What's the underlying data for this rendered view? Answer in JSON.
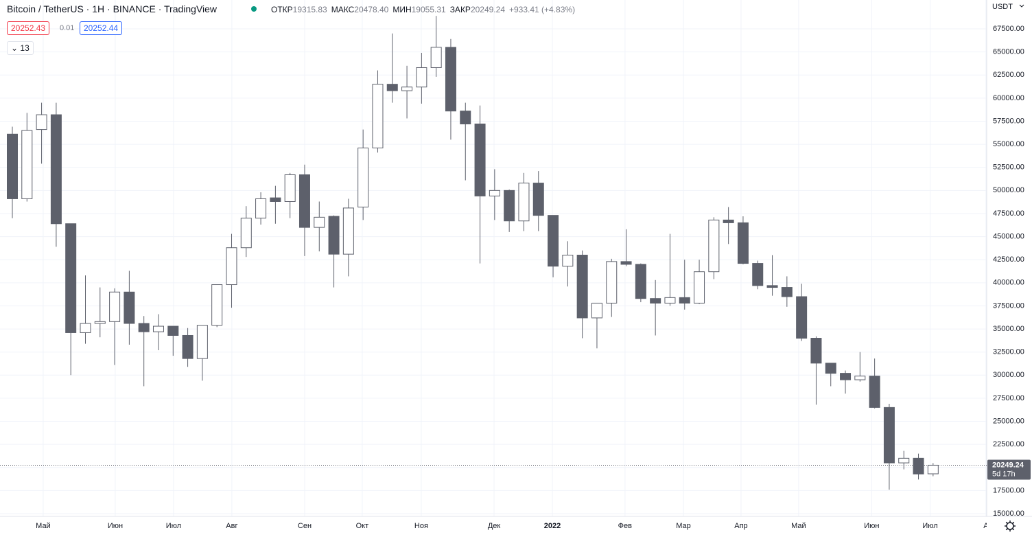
{
  "chart_data": {
    "type": "candlestick",
    "title": "Bitcoin / TetherUS · 1H · BINANCE · TradingView",
    "ohlc_legend": {
      "items": [
        {
          "label": "ОТКР",
          "value_label": "19315.83"
        },
        {
          "label": "МАКС",
          "value_label": "20478.40"
        },
        {
          "label": "МИН",
          "value_label": "19055.31"
        },
        {
          "label": "ЗАКР",
          "value_label": "20249.24"
        }
      ],
      "change": "+933.41 (+4.83%)"
    },
    "quote": {
      "bid": "20252.43",
      "spread": "0.01",
      "ask": "20252.44",
      "indicators": "13"
    },
    "currency": "USDT",
    "price_tag": {
      "value": 20249.24,
      "label": "20249.24",
      "countdown": "5d 17h"
    },
    "colors": {
      "down": "#5d606b",
      "up": "#ffffff",
      "border": "#5d606b"
    },
    "x": [
      0,
      1,
      2,
      3,
      4,
      5,
      6,
      7,
      8,
      9,
      10,
      11,
      12,
      13,
      14,
      15,
      16,
      17,
      18,
      19,
      20,
      21,
      22,
      23,
      24,
      25,
      26,
      27,
      28,
      29,
      30,
      31,
      32,
      33,
      34,
      35,
      36,
      37,
      38,
      39,
      40,
      41,
      42,
      43,
      44,
      45,
      46,
      47,
      48,
      49,
      50,
      51,
      52,
      53,
      54,
      55,
      56,
      57,
      58,
      59,
      60,
      61,
      62,
      63
    ],
    "candles": {
      "open": [
        56100,
        49100,
        56600,
        58200,
        46400,
        34600,
        35600,
        35800,
        39000,
        35600,
        34700,
        35300,
        34300,
        31800,
        35400,
        39800,
        43800,
        47000,
        49200,
        48800,
        51700,
        46000,
        47200,
        43100,
        48200,
        54600,
        61500,
        60800,
        61200,
        63300,
        65500,
        58600,
        57200,
        49400,
        50000,
        46700,
        50800,
        47300,
        41800,
        43000,
        36200,
        37800,
        42300,
        42000,
        38300,
        37800,
        38400,
        37800,
        41200,
        46800,
        46500,
        42100,
        39700,
        39500,
        38500,
        34000,
        31300,
        30200,
        29500,
        29900,
        26500,
        20500,
        21000,
        19315.83
      ],
      "high": [
        56900,
        58400,
        59500,
        59500,
        46400,
        40800,
        39500,
        39400,
        41300,
        36400,
        36600,
        35300,
        35100,
        35400,
        39800,
        45300,
        48300,
        49800,
        50500,
        51900,
        52800,
        48800,
        47300,
        49100,
        56600,
        63000,
        67000,
        63500,
        64900,
        68900,
        66400,
        59500,
        59200,
        52300,
        50100,
        51900,
        52100,
        47300,
        44500,
        43500,
        37800,
        42600,
        45800,
        42100,
        40300,
        45300,
        42500,
        42500,
        47100,
        48200,
        47200,
        42400,
        43000,
        40700,
        39900,
        34200,
        31300,
        30500,
        32500,
        31800,
        26900,
        21800,
        21500,
        20478.4
      ],
      "low": [
        47000,
        48800,
        52900,
        43900,
        30000,
        33400,
        34100,
        31100,
        33300,
        28800,
        32700,
        32100,
        30900,
        29400,
        35200,
        37300,
        42800,
        46300,
        46400,
        47000,
        42900,
        43400,
        39500,
        40700,
        46800,
        54100,
        59500,
        57800,
        59400,
        62300,
        55500,
        51100,
        42100,
        46800,
        45500,
        45600,
        45600,
        40600,
        39600,
        34000,
        32900,
        36300,
        41800,
        37900,
        34300,
        37500,
        37100,
        37700,
        40400,
        44200,
        42000,
        39300,
        38600,
        37400,
        33700,
        26800,
        28800,
        28000,
        29300,
        26400,
        17600,
        19800,
        18700,
        19055.31
      ],
      "close": [
        49100,
        56500,
        58200,
        46400,
        34600,
        35600,
        35800,
        39000,
        35600,
        34700,
        35300,
        34300,
        31800,
        35400,
        39800,
        43800,
        47000,
        49100,
        48800,
        51700,
        46000,
        47100,
        43100,
        48100,
        54600,
        61500,
        60800,
        61200,
        63300,
        65500,
        58600,
        57200,
        49400,
        50000,
        46700,
        50800,
        47300,
        41800,
        43000,
        36200,
        37800,
        42300,
        42000,
        38300,
        37800,
        38400,
        37800,
        41200,
        46800,
        46500,
        42100,
        39700,
        39500,
        38500,
        34000,
        31300,
        30200,
        29500,
        29900,
        26500,
        20500,
        21000,
        19300,
        20249.24
      ]
    },
    "xlim": [
      -0.845,
      66.67
    ],
    "xticks": [
      {
        "value": 2.11,
        "label": "Май"
      },
      {
        "value": 7.04,
        "label": "Июн"
      },
      {
        "value": 11.03,
        "label": "Июл"
      },
      {
        "value": 15.02,
        "label": "Авг"
      },
      {
        "value": 20.0,
        "label": "Сен"
      },
      {
        "value": 23.94,
        "label": "Окт"
      },
      {
        "value": 27.98,
        "label": "Ноя"
      },
      {
        "value": 32.96,
        "label": "Дек"
      },
      {
        "value": 36.95,
        "label": "2022"
      },
      {
        "value": 41.92,
        "label": "Фев"
      },
      {
        "value": 45.92,
        "label": "Мар"
      },
      {
        "value": 49.86,
        "label": "Апр"
      },
      {
        "value": 53.8,
        "label": "Май"
      },
      {
        "value": 58.8,
        "label": "Июн"
      },
      {
        "value": 62.8,
        "label": "Июл"
      },
      {
        "value": 66.62,
        "label": "А"
      }
    ],
    "ylim": [
      14705,
      70623
    ],
    "yticks": [
      {
        "value": 15000,
        "label": "15000.00"
      },
      {
        "value": 17500,
        "label": "17500.00"
      },
      {
        "value": 20000,
        "label": "20000.00"
      },
      {
        "value": 22500,
        "label": "22500.00"
      },
      {
        "value": 25000,
        "label": "25000.00"
      },
      {
        "value": 27500,
        "label": "27500.00"
      },
      {
        "value": 30000,
        "label": "30000.00"
      },
      {
        "value": 32500,
        "label": "32500.00"
      },
      {
        "value": 35000,
        "label": "35000.00"
      },
      {
        "value": 37500,
        "label": "37500.00"
      },
      {
        "value": 40000,
        "label": "40000.00"
      },
      {
        "value": 42500,
        "label": "42500.00"
      },
      {
        "value": 45000,
        "label": "45000.00"
      },
      {
        "value": 47500,
        "label": "47500.00"
      },
      {
        "value": 50000,
        "label": "50000.00"
      },
      {
        "value": 52500,
        "label": "52500.00"
      },
      {
        "value": 55000,
        "label": "55000.00"
      },
      {
        "value": 57500,
        "label": "57500.00"
      },
      {
        "value": 60000,
        "label": "60000.00"
      },
      {
        "value": 62500,
        "label": "62500.00"
      },
      {
        "value": 65000,
        "label": "65000.00"
      },
      {
        "value": 67500,
        "label": "67500.00"
      }
    ],
    "grid": true
  }
}
